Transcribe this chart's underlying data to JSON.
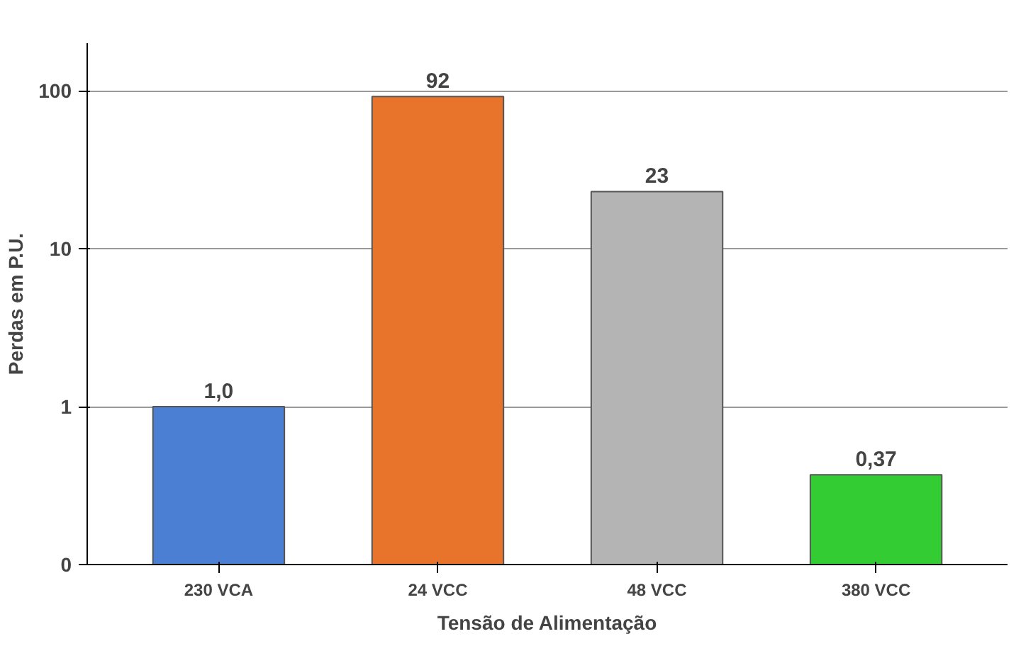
{
  "chart_data": {
    "type": "bar",
    "xlabel": "Tensão de Alimentação",
    "ylabel": "Perdas em P.U.",
    "categories": [
      "230 VCA",
      "24 VCC",
      "48 VCC",
      "380 VCC"
    ],
    "values": [
      1.0,
      92,
      23,
      0.37
    ],
    "colors": [
      "#4a7fd4",
      "#e8732a",
      "#b4b4b4",
      "#33cc33"
    ],
    "value_labels": [
      "1,0",
      "92",
      "23",
      "0,37"
    ],
    "log": true,
    "ylim": [
      0.1,
      200
    ],
    "yticks": [
      {
        "value": 0.1,
        "label": "0"
      },
      1,
      10,
      100
    ],
    "grid": "y"
  }
}
